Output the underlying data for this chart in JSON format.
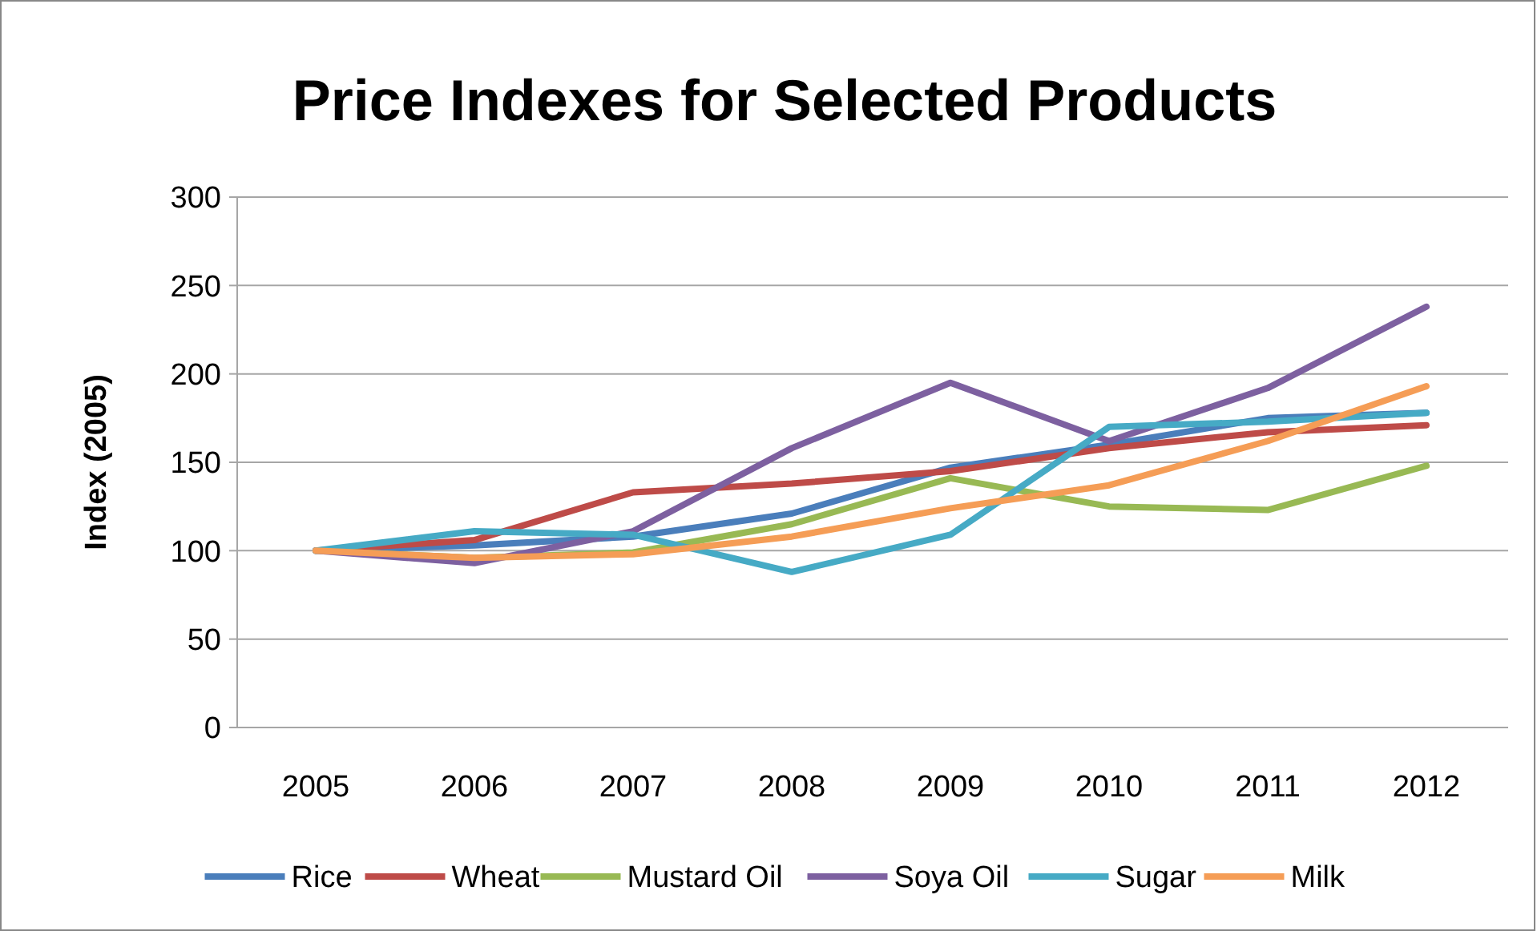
{
  "chart_data": {
    "type": "line",
    "title": "Price Indexes for Selected Products",
    "ylabel": "Index (2005)",
    "categories": [
      "2005",
      "2006",
      "2007",
      "2008",
      "2009",
      "2010",
      "2011",
      "2012"
    ],
    "series": [
      {
        "name": "Rice",
        "color": "#4a7ebb",
        "values": [
          100,
          103,
          108,
          121,
          147,
          160,
          175,
          178
        ]
      },
      {
        "name": "Wheat",
        "color": "#be4b48",
        "values": [
          100,
          106,
          133,
          138,
          145,
          158,
          167,
          171
        ]
      },
      {
        "name": "Mustard Oil",
        "color": "#98b954",
        "values": [
          100,
          96,
          99,
          115,
          141,
          125,
          123,
          148
        ]
      },
      {
        "name": "Soya Oil",
        "color": "#7d60a0",
        "values": [
          100,
          93,
          111,
          158,
          195,
          162,
          192,
          238
        ]
      },
      {
        "name": "Sugar",
        "color": "#46aac5",
        "values": [
          100,
          111,
          109,
          88,
          109,
          170,
          173,
          178
        ]
      },
      {
        "name": "Milk",
        "color": "#f59d56",
        "values": [
          100,
          96,
          98,
          108,
          124,
          137,
          162,
          193
        ]
      }
    ],
    "ylim": [
      0,
      300
    ],
    "yticks": [
      0,
      50,
      100,
      150,
      200,
      250,
      300
    ],
    "grid": "y",
    "legend": "bottom",
    "marker": "none",
    "line_style": "solid"
  }
}
